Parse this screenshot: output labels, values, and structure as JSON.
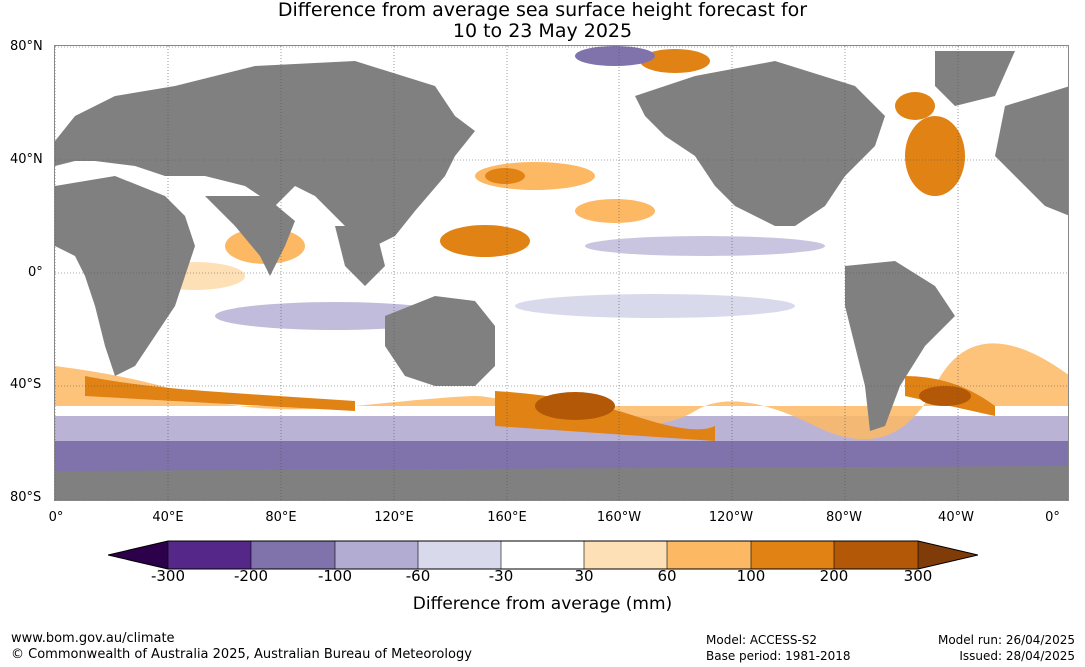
{
  "title_line1": "Difference from average sea surface height forecast for",
  "title_line2": "10 to 23 May 2025",
  "lat_labels": [
    "80°N",
    "40°N",
    "0°",
    "40°S",
    "80°S"
  ],
  "lon_labels": [
    "0°",
    "40°E",
    "80°E",
    "120°E",
    "160°E",
    "160°W",
    "120°W",
    "80°W",
    "40°W",
    "0°"
  ],
  "colorbar": {
    "labels": [
      "-300",
      "-200",
      "-100",
      "-60",
      "-30",
      "30",
      "60",
      "100",
      "200",
      "300"
    ],
    "colors": [
      "#2d004b",
      "#542788",
      "#8073ac",
      "#b2abd2",
      "#d8daeb",
      "#ffffff",
      "#fee0b6",
      "#fdb863",
      "#e08214",
      "#b35806",
      "#7f3b08"
    ],
    "title": "Difference from average (mm)"
  },
  "land_color": "#808080",
  "footer": {
    "url": "www.bom.gov.au/climate",
    "copyright": "© Commonwealth of Australia 2025, Australian Bureau of Meteorology",
    "model": "Model: ACCESS-S2",
    "base_period": "Base period: 1981-2018",
    "model_run": "Model run: 26/04/2025",
    "issued": "Issued: 28/04/2025"
  }
}
